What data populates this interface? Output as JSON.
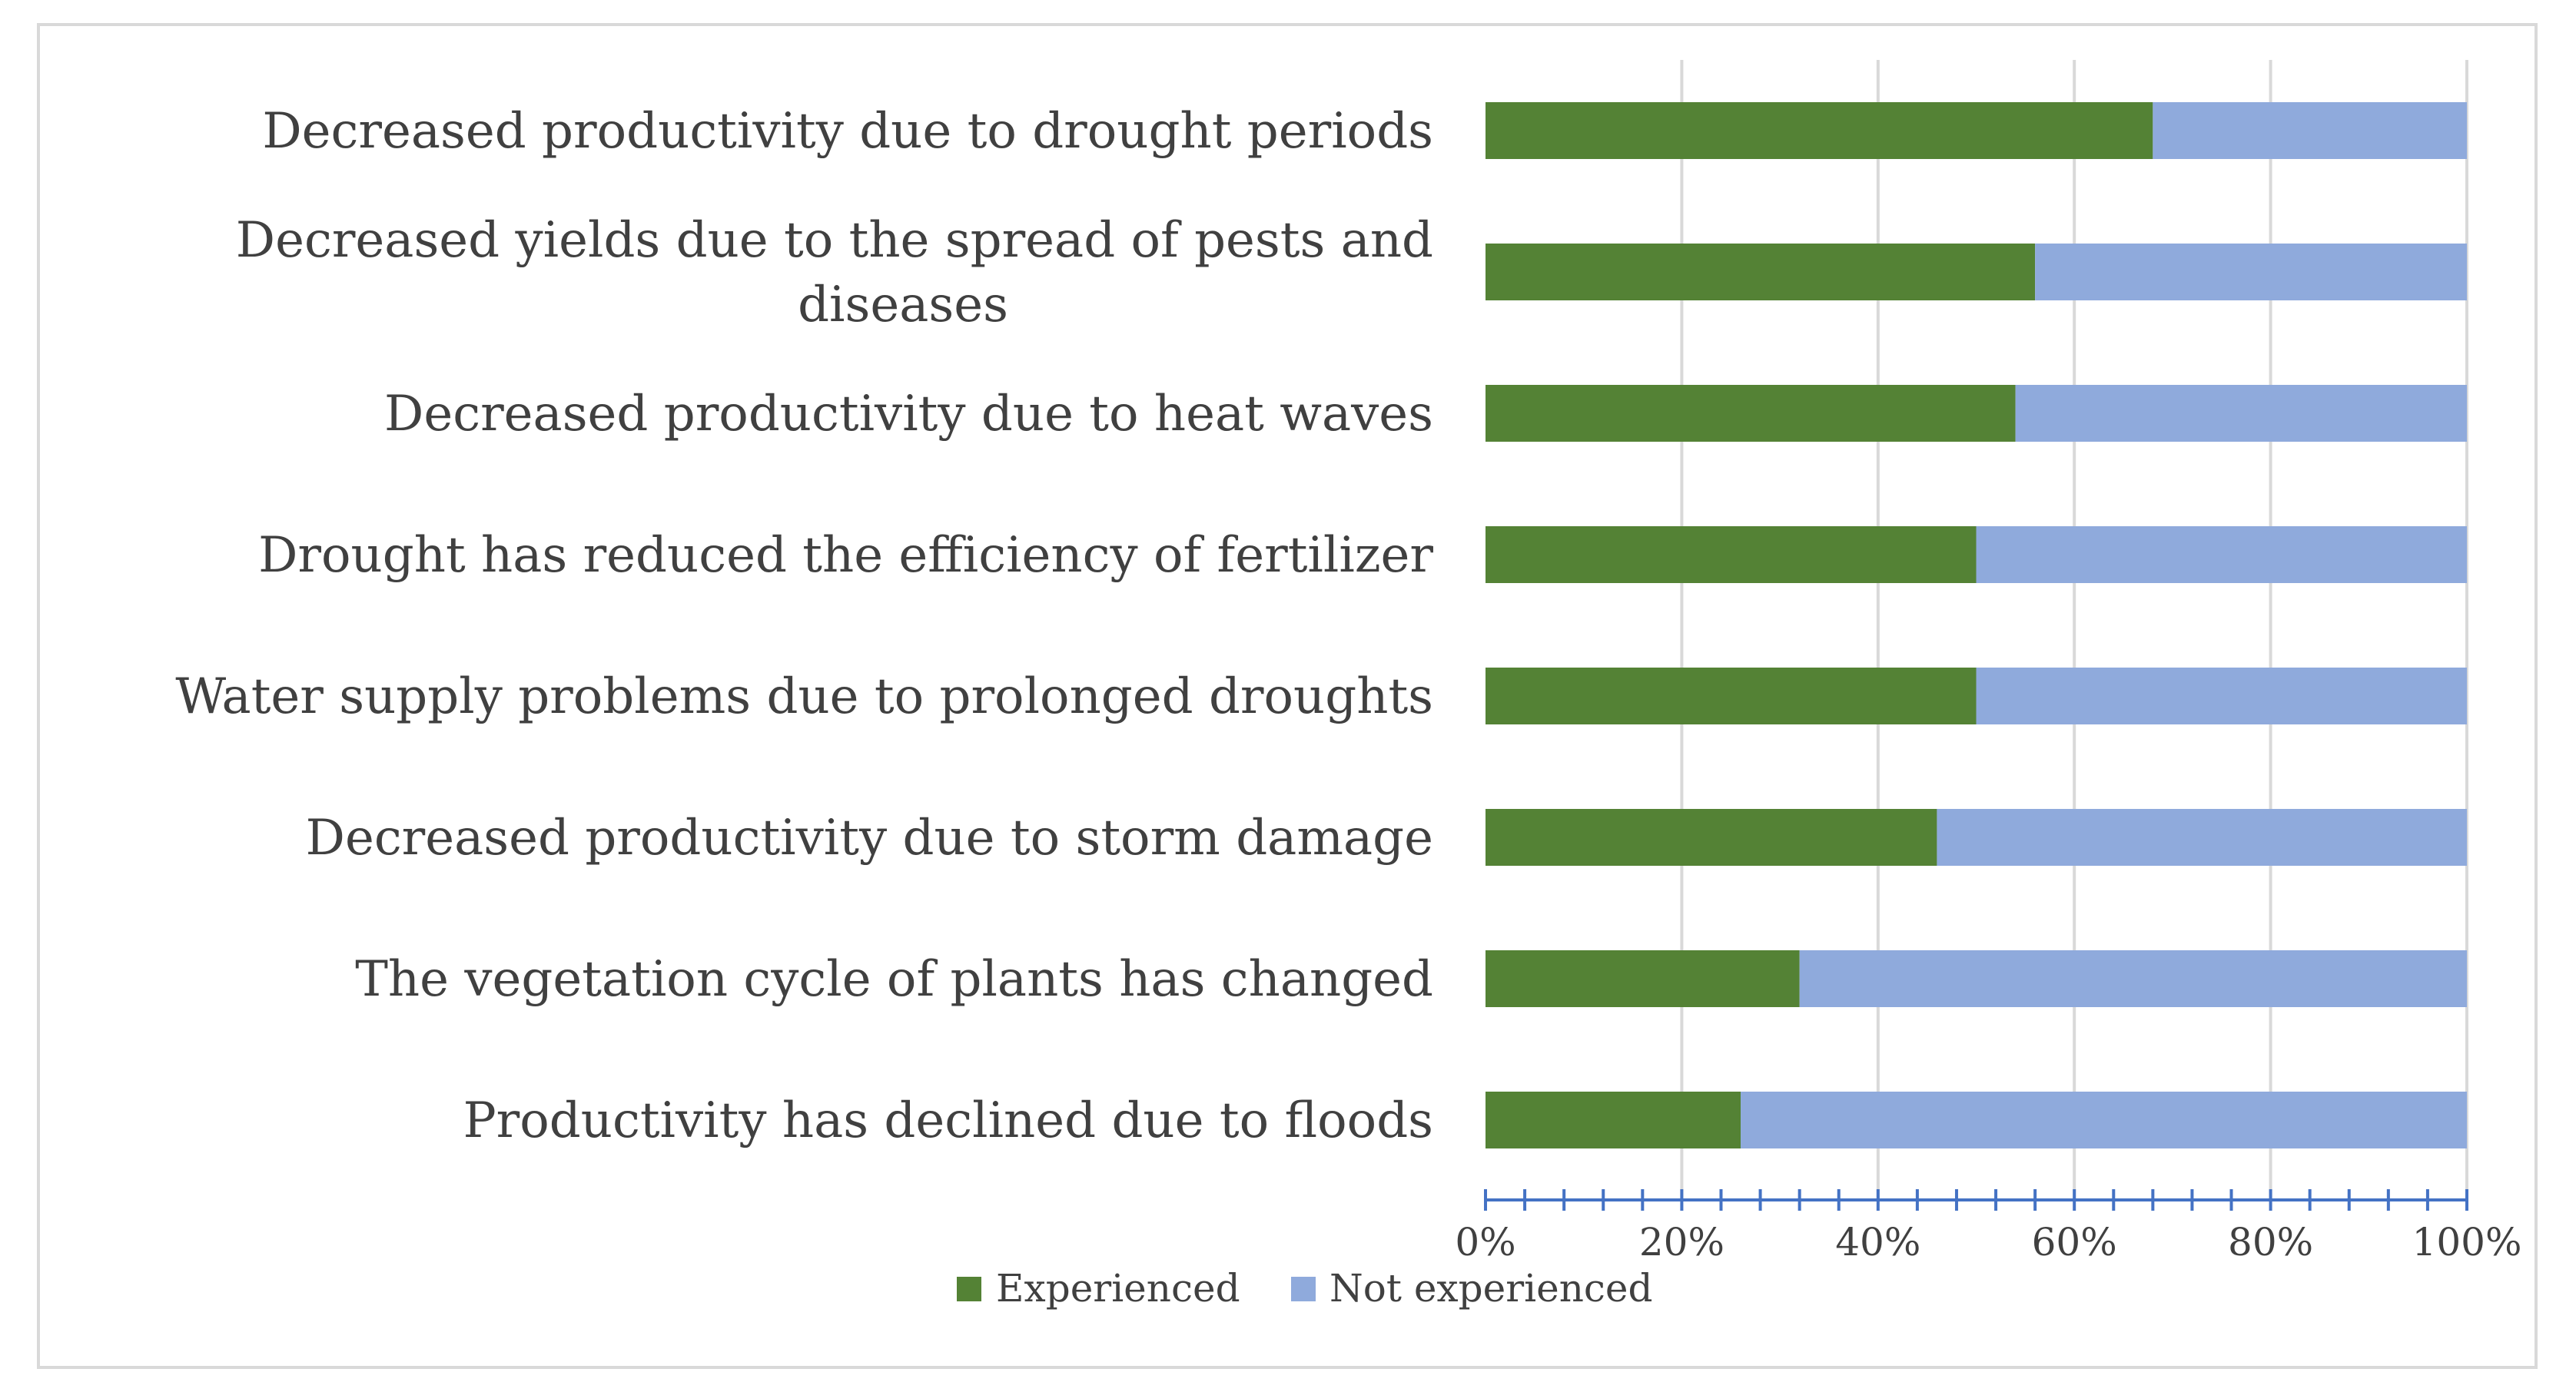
{
  "chart_data": {
    "type": "bar",
    "orientation": "horizontal",
    "stacked": true,
    "percent": true,
    "title": "",
    "xlabel": "",
    "ylabel": "",
    "xlim": [
      0,
      100
    ],
    "grid": true,
    "legend_position": "bottom",
    "categories": [
      [
        "Decreased productivity due to drought periods"
      ],
      [
        "Decreased yields due to the spread of pests and",
        "diseases"
      ],
      [
        "Decreased productivity due to heat waves"
      ],
      [
        "Drought has reduced the efficiency of fertilizer"
      ],
      [
        "Water supply problems due to prolonged droughts"
      ],
      [
        "Decreased productivity due to storm damage"
      ],
      [
        "The vegetation cycle of plants has changed"
      ],
      [
        "Productivity has declined due to floods"
      ]
    ],
    "series": [
      {
        "name": "Experienced",
        "color": "#548235",
        "values": [
          68,
          56,
          54,
          50,
          50,
          46,
          32,
          26
        ]
      },
      {
        "name": "Not experienced",
        "color": "#8faadc",
        "values": [
          32,
          44,
          46,
          50,
          50,
          54,
          68,
          74
        ]
      }
    ],
    "tick_labels": [
      "0%",
      "20%",
      "40%",
      "60%",
      "80%",
      "100%"
    ],
    "tick_values": [
      0,
      20,
      40,
      60,
      80,
      100
    ],
    "minor_tick_step": 4
  }
}
